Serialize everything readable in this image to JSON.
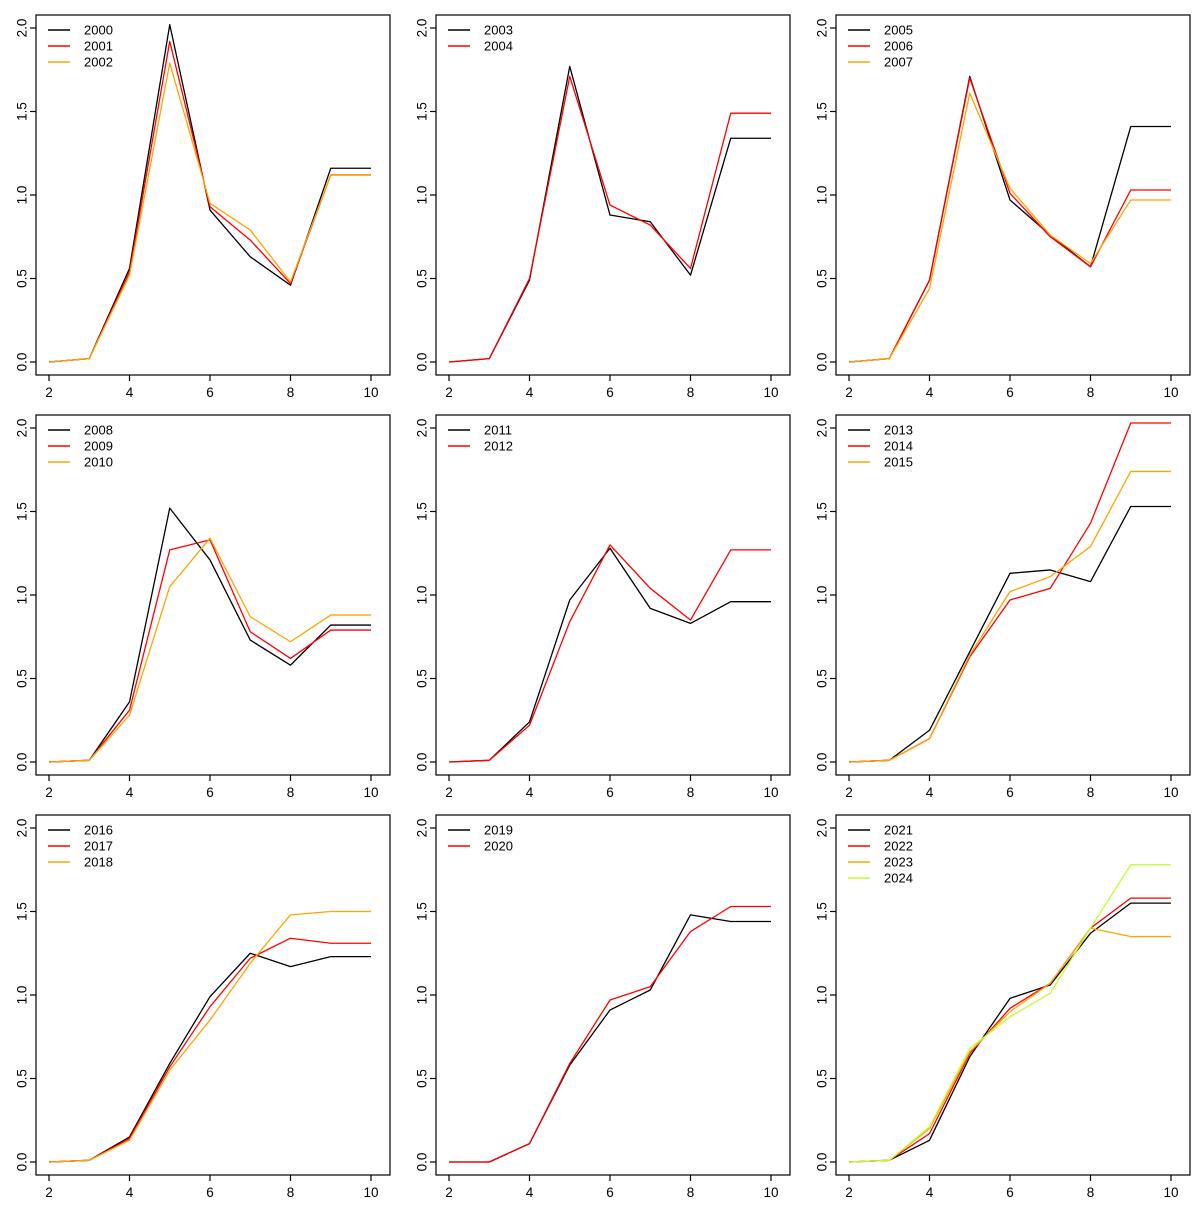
{
  "figure": {
    "background": "#ffffff",
    "layout": "3x3-small-multiples",
    "x_ticks": [
      2,
      4,
      6,
      8,
      10
    ],
    "x_tick_labels": [
      "2",
      "4",
      "6",
      "8",
      "10"
    ],
    "y_ticks": [
      0.0,
      0.5,
      1.0,
      1.5,
      2.0
    ],
    "y_tick_labels": [
      "0.0",
      "0.5",
      "1.0",
      "1.5",
      "2.0"
    ],
    "xlim": [
      2,
      10
    ],
    "ylim": [
      0,
      2.05
    ],
    "colors": {
      "series1": "#000000",
      "series2": "#FF0000",
      "series3": "#FFA500",
      "series4": "#BFFF2F"
    }
  },
  "chart_data": [
    {
      "type": "line",
      "title": "",
      "xlabel": "",
      "ylabel": "",
      "grid": false,
      "legend_position": "topleft",
      "x": [
        2,
        3,
        4,
        5,
        6,
        7,
        8,
        9,
        10
      ],
      "series": [
        {
          "name": "2000",
          "color": "#000000",
          "values": [
            0,
            0.02,
            0.56,
            2.02,
            0.91,
            0.63,
            0.46,
            1.16,
            1.16
          ]
        },
        {
          "name": "2001",
          "color": "#FF0000",
          "values": [
            0,
            0.02,
            0.54,
            1.92,
            0.93,
            0.73,
            0.47,
            1.12,
            1.12
          ]
        },
        {
          "name": "2002",
          "color": "#FFA500",
          "values": [
            0,
            0.02,
            0.52,
            1.79,
            0.95,
            0.79,
            0.48,
            1.12,
            1.12
          ]
        }
      ]
    },
    {
      "type": "line",
      "title": "",
      "xlabel": "",
      "ylabel": "",
      "grid": false,
      "legend_position": "topleft",
      "x": [
        2,
        3,
        4,
        5,
        6,
        7,
        8,
        9,
        10
      ],
      "series": [
        {
          "name": "2003",
          "color": "#000000",
          "values": [
            0,
            0.02,
            0.49,
            1.77,
            0.88,
            0.84,
            0.52,
            1.34,
            1.34
          ]
        },
        {
          "name": "2004",
          "color": "#FF0000",
          "values": [
            0,
            0.02,
            0.5,
            1.71,
            0.94,
            0.82,
            0.56,
            1.49,
            1.49
          ]
        }
      ]
    },
    {
      "type": "line",
      "title": "",
      "xlabel": "",
      "ylabel": "",
      "grid": false,
      "legend_position": "topleft",
      "x": [
        2,
        3,
        4,
        5,
        6,
        7,
        8,
        9,
        10
      ],
      "series": [
        {
          "name": "2005",
          "color": "#000000",
          "values": [
            0,
            0.02,
            0.49,
            1.71,
            0.97,
            0.76,
            0.57,
            1.41,
            1.41
          ]
        },
        {
          "name": "2006",
          "color": "#FF0000",
          "values": [
            0,
            0.02,
            0.49,
            1.7,
            1.01,
            0.75,
            0.57,
            1.03,
            1.03
          ]
        },
        {
          "name": "2007",
          "color": "#FFA500",
          "values": [
            0,
            0.02,
            0.44,
            1.61,
            1.04,
            0.76,
            0.59,
            0.97,
            0.97
          ]
        }
      ]
    },
    {
      "type": "line",
      "title": "",
      "xlabel": "",
      "ylabel": "",
      "grid": false,
      "legend_position": "topleft",
      "x": [
        2,
        3,
        4,
        5,
        6,
        7,
        8,
        9,
        10
      ],
      "series": [
        {
          "name": "2008",
          "color": "#000000",
          "values": [
            0,
            0.01,
            0.36,
            1.52,
            1.21,
            0.73,
            0.58,
            0.82,
            0.82
          ]
        },
        {
          "name": "2009",
          "color": "#FF0000",
          "values": [
            0,
            0.01,
            0.31,
            1.27,
            1.33,
            0.78,
            0.62,
            0.79,
            0.79
          ]
        },
        {
          "name": "2010",
          "color": "#FFA500",
          "values": [
            0,
            0.01,
            0.28,
            1.05,
            1.34,
            0.87,
            0.72,
            0.88,
            0.88
          ]
        }
      ]
    },
    {
      "type": "line",
      "title": "",
      "xlabel": "",
      "ylabel": "",
      "grid": false,
      "legend_position": "topleft",
      "x": [
        2,
        3,
        4,
        5,
        6,
        7,
        8,
        9,
        10
      ],
      "series": [
        {
          "name": "2011",
          "color": "#000000",
          "values": [
            0,
            0.01,
            0.24,
            0.97,
            1.28,
            0.92,
            0.83,
            0.96,
            0.96
          ]
        },
        {
          "name": "2012",
          "color": "#FF0000",
          "values": [
            0,
            0.01,
            0.22,
            0.84,
            1.3,
            1.04,
            0.85,
            1.27,
            1.27
          ]
        }
      ]
    },
    {
      "type": "line",
      "title": "",
      "xlabel": "",
      "ylabel": "",
      "grid": false,
      "legend_position": "topleft",
      "x": [
        2,
        3,
        4,
        5,
        6,
        7,
        8,
        9,
        10
      ],
      "series": [
        {
          "name": "2013",
          "color": "#000000",
          "values": [
            0,
            0.01,
            0.19,
            0.66,
            1.13,
            1.15,
            1.08,
            1.53,
            1.53
          ]
        },
        {
          "name": "2014",
          "color": "#FF0000",
          "values": [
            0,
            0.01,
            0.14,
            0.63,
            0.97,
            1.04,
            1.43,
            2.03,
            2.03
          ]
        },
        {
          "name": "2015",
          "color": "#FFA500",
          "values": [
            0,
            0.01,
            0.14,
            0.64,
            1.02,
            1.11,
            1.29,
            1.74,
            1.74
          ]
        }
      ]
    },
    {
      "type": "line",
      "title": "",
      "xlabel": "",
      "ylabel": "",
      "grid": false,
      "legend_position": "topleft",
      "x": [
        2,
        3,
        4,
        5,
        6,
        7,
        8,
        9,
        10
      ],
      "series": [
        {
          "name": "2016",
          "color": "#000000",
          "values": [
            0,
            0.01,
            0.15,
            0.59,
            0.99,
            1.25,
            1.17,
            1.23,
            1.23
          ]
        },
        {
          "name": "2017",
          "color": "#FF0000",
          "values": [
            0,
            0.01,
            0.14,
            0.57,
            0.93,
            1.22,
            1.34,
            1.31,
            1.31
          ]
        },
        {
          "name": "2018",
          "color": "#FFA500",
          "values": [
            0,
            0.01,
            0.13,
            0.55,
            0.85,
            1.19,
            1.48,
            1.5,
            1.5
          ]
        }
      ]
    },
    {
      "type": "line",
      "title": "",
      "xlabel": "",
      "ylabel": "",
      "grid": false,
      "legend_position": "topleft",
      "x": [
        2,
        3,
        4,
        5,
        6,
        7,
        8,
        9,
        10
      ],
      "series": [
        {
          "name": "2019",
          "color": "#000000",
          "values": [
            0,
            0.0,
            0.11,
            0.58,
            0.91,
            1.03,
            1.48,
            1.44,
            1.44
          ]
        },
        {
          "name": "2020",
          "color": "#FF0000",
          "values": [
            0,
            0.0,
            0.11,
            0.59,
            0.97,
            1.05,
            1.38,
            1.53,
            1.53
          ]
        }
      ]
    },
    {
      "type": "line",
      "title": "",
      "xlabel": "",
      "ylabel": "",
      "grid": false,
      "legend_position": "topleft",
      "x": [
        2,
        3,
        4,
        5,
        6,
        7,
        8,
        9,
        10
      ],
      "series": [
        {
          "name": "2021",
          "color": "#000000",
          "values": [
            0,
            0.01,
            0.13,
            0.63,
            0.98,
            1.06,
            1.37,
            1.55,
            1.55
          ]
        },
        {
          "name": "2022",
          "color": "#FF0000",
          "values": [
            0,
            0.01,
            0.17,
            0.65,
            0.92,
            1.07,
            1.4,
            1.58,
            1.58
          ]
        },
        {
          "name": "2023",
          "color": "#FFA500",
          "values": [
            0,
            0.01,
            0.2,
            0.66,
            0.9,
            1.07,
            1.4,
            1.35,
            1.35
          ]
        },
        {
          "name": "2024",
          "color": "#BFFF2F",
          "values": [
            0,
            0.01,
            0.21,
            0.68,
            0.87,
            1.01,
            1.4,
            1.78,
            1.78
          ]
        }
      ]
    }
  ]
}
